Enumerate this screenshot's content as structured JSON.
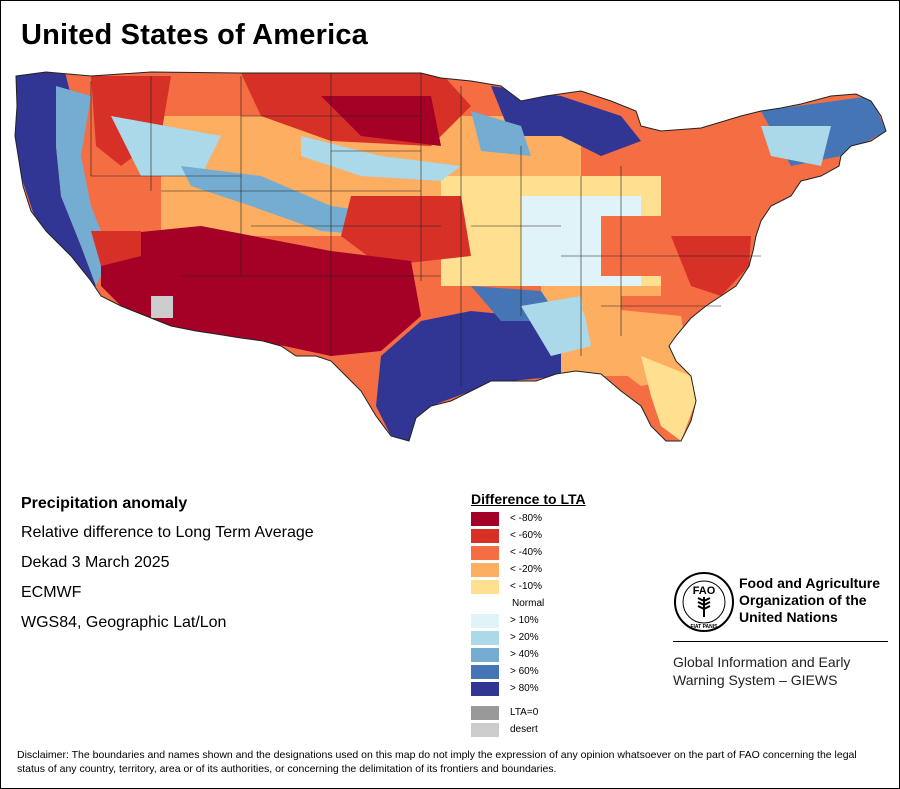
{
  "title": "United States of America",
  "info": {
    "heading": "Precipitation anomaly",
    "line1": "Relative difference to Long Term Average",
    "line2": "Dekad 3 March 2025",
    "line3": "ECMWF",
    "line4": "WGS84, Geographic Lat/Lon"
  },
  "legend": {
    "title": "Difference to LTA",
    "items": [
      {
        "label": "< -80%",
        "color": "#a50026"
      },
      {
        "label": "< -60%",
        "color": "#d73027"
      },
      {
        "label": "< -40%",
        "color": "#f46d43"
      },
      {
        "label": "< -20%",
        "color": "#fdae61"
      },
      {
        "label": "< -10%",
        "color": "#fee090"
      }
    ],
    "normal_label": "Normal",
    "wet_items": [
      {
        "label": "> 10%",
        "color": "#e0f3f8"
      },
      {
        "label": "> 20%",
        "color": "#abd9e9"
      },
      {
        "label": "> 40%",
        "color": "#74add1"
      },
      {
        "label": "> 60%",
        "color": "#4575b4"
      },
      {
        "label": "> 80%",
        "color": "#313695"
      }
    ],
    "extra_items": [
      {
        "label": "LTA=0",
        "color": "#999999"
      },
      {
        "label": "desert",
        "color": "#cccccc"
      }
    ]
  },
  "fao": {
    "name_line1": "Food and Agriculture",
    "name_line2": "Organization of the",
    "name_line3": "United Nations",
    "logo_text": "FAO",
    "logo_motto": "FIAT PANIS",
    "giews_line1": "Global Information and Early",
    "giews_line2": "Warning System – GIEWS"
  },
  "disclaimer": "Disclaimer: The boundaries and names shown and the designations used on this map do not imply the expression of any opinion whatsoever on the part of FAO concerning the legal status of any country, territory, area or of its authorities, or concerning the delimitation of its frontiers and boundaries."
}
